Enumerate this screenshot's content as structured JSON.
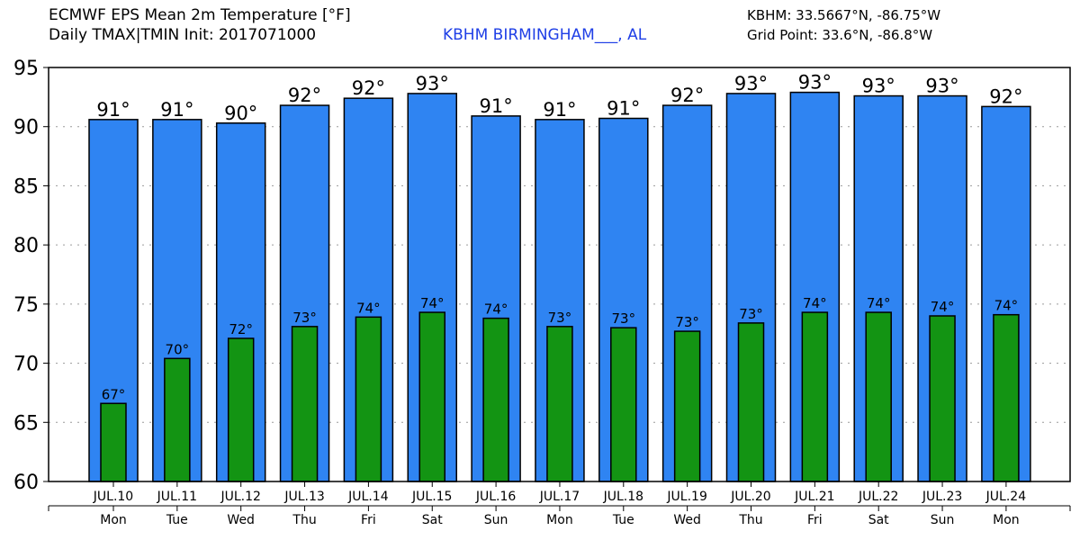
{
  "header": {
    "title_line1": "ECMWF EPS Mean 2m Temperature [°F]",
    "title_line2": "Daily TMAX|TMIN Init: 2017071000",
    "station": "KBHM BIRMINGHAM___, AL",
    "station_coords": "KBHM: 33.5667°N, -86.75°W",
    "grid_point": "Grid Point: 33.6°N, -86.8°W"
  },
  "colors": {
    "tmax_bar": "#2f84f2",
    "tmin_bar": "#139413",
    "station_text": "#1f3fe6"
  },
  "chart_data": {
    "type": "bar",
    "title": "ECMWF EPS Mean 2m Temperature [°F]",
    "subtitle": "Daily TMAX|TMIN Init: 2017071000",
    "xlabel": "",
    "ylabel": "",
    "ylim": [
      60,
      95
    ],
    "yticks": [
      60,
      65,
      70,
      75,
      80,
      85,
      90,
      95
    ],
    "grid": true,
    "categories": [
      "JUL.10",
      "JUL.11",
      "JUL.12",
      "JUL.13",
      "JUL.14",
      "JUL.15",
      "JUL.16",
      "JUL.17",
      "JUL.18",
      "JUL.19",
      "JUL.20",
      "JUL.21",
      "JUL.22",
      "JUL.23",
      "JUL.24"
    ],
    "weekdays": [
      "Mon",
      "Tue",
      "Wed",
      "Thu",
      "Fri",
      "Sat",
      "Sun",
      "Mon",
      "Tue",
      "Wed",
      "Thu",
      "Fri",
      "Sat",
      "Sun",
      "Mon"
    ],
    "series": [
      {
        "values": [
          90.6,
          90.6,
          90.3,
          91.8,
          92.4,
          92.8,
          90.9,
          90.6,
          90.7,
          91.8,
          92.8,
          92.9,
          92.6,
          92.6,
          91.7
        ],
        "labels": [
          "91°",
          "91°",
          "90°",
          "92°",
          "92°",
          "93°",
          "91°",
          "91°",
          "91°",
          "92°",
          "93°",
          "93°",
          "93°",
          "93°",
          "92°"
        ]
      },
      {
        "values": [
          66.6,
          70.4,
          72.1,
          73.1,
          73.9,
          74.3,
          73.8,
          73.1,
          73.0,
          72.7,
          73.4,
          74.3,
          74.3,
          74.0,
          74.1
        ],
        "labels": [
          "67°",
          "70°",
          "72°",
          "73°",
          "74°",
          "74°",
          "74°",
          "73°",
          "73°",
          "73°",
          "73°",
          "74°",
          "74°",
          "74°",
          "74°"
        ]
      }
    ]
  }
}
